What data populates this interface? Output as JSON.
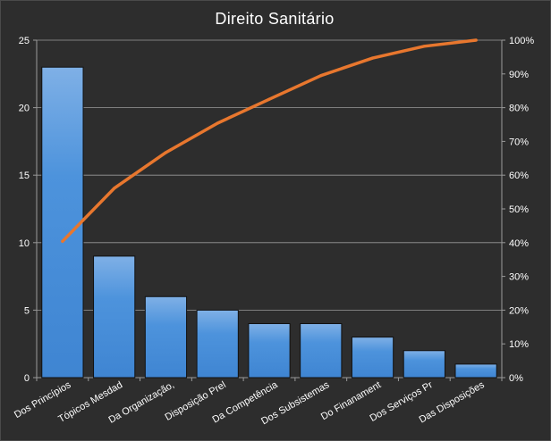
{
  "chart_data": {
    "type": "bar",
    "title": "Direito  Sanitário",
    "categories": [
      "Dos Princípios",
      "Tópicos Mesdad",
      "Da Organização,",
      "Disposição Prel",
      "Da Competência",
      "Dos Subsistemas",
      "Do Finanament",
      "Dos Serviços Pr",
      "Das Disposições"
    ],
    "series": [
      {
        "type": "bar",
        "axis": "left",
        "values": [
          23,
          9,
          6,
          5,
          4,
          4,
          3,
          2,
          1
        ],
        "color": "#4a90d9"
      },
      {
        "type": "line",
        "axis": "right",
        "values": [
          0.404,
          0.561,
          0.667,
          0.754,
          0.825,
          0.895,
          0.947,
          0.982,
          1.0
        ],
        "color": "#e8772e"
      }
    ],
    "ylim": [
      0,
      25
    ],
    "yticks": [
      "0",
      "5",
      "10",
      "15",
      "20",
      "25"
    ],
    "y2lim": [
      0,
      1
    ],
    "y2ticks": [
      "0%",
      "10%",
      "20%",
      "30%",
      "40%",
      "50%",
      "60%",
      "70%",
      "80%",
      "90%",
      "100%"
    ],
    "grid": true,
    "legend": "none",
    "background": "#2d2d2d",
    "text_color": "#ffffff"
  }
}
